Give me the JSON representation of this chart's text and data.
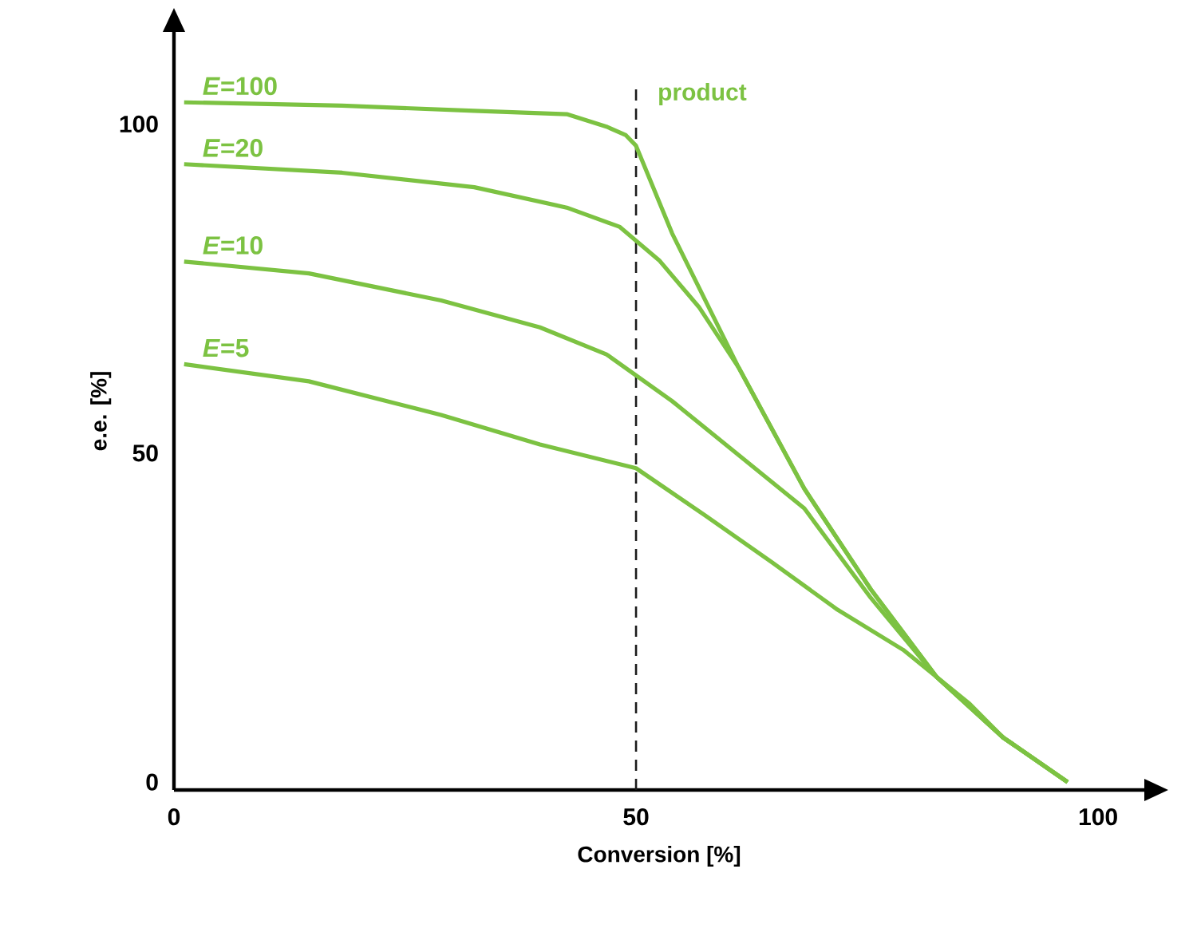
{
  "chart_data": {
    "type": "line",
    "xlabel": "Conversion [%]",
    "ylabel": "e.e. [%]",
    "xlim": [
      0,
      105
    ],
    "ylim": [
      -1.2,
      114
    ],
    "xticks": [
      0,
      50,
      100
    ],
    "yticks": [
      0,
      50,
      100
    ],
    "series": [
      {
        "name": "*E*=100",
        "color": "#7cc242",
        "x": [
          1.1,
          18.2,
          32.5,
          42.5,
          46.8,
          48.9,
          50,
          53.9,
          61.1,
          68.2,
          75.4,
          82.5,
          89.7,
          96.7
        ],
        "values": [
          103.3,
          102.8,
          102,
          101.5,
          99.6,
          98.3,
          96.7,
          83.4,
          63,
          44.6,
          29.3,
          16,
          6.8,
          0
        ]
      },
      {
        "name": "*E*=20",
        "color": "#7cc242",
        "x": [
          1.1,
          18.2,
          32.5,
          42.5,
          48.2,
          52.5,
          56.8,
          61.1,
          68.2,
          75.4,
          82.5,
          89.7,
          96.7
        ],
        "values": [
          93.9,
          92.6,
          90.4,
          87.3,
          84.4,
          79.3,
          72.2,
          63,
          44.6,
          29.3,
          16,
          6.8,
          0
        ]
      },
      {
        "name": "*E*=10",
        "color": "#7cc242",
        "x": [
          1.1,
          14.6,
          28.9,
          39.6,
          46.8,
          53.9,
          61.1,
          68.2,
          75.4,
          82.5,
          89.7,
          96.7
        ],
        "values": [
          79.1,
          77.3,
          73.2,
          69.1,
          65.0,
          57.9,
          49.7,
          41.6,
          28,
          16,
          6.8,
          0
        ]
      },
      {
        "name": "*E*=5",
        "color": "#7cc242",
        "x": [
          1.1,
          14.6,
          28.9,
          39.6,
          50,
          57.5,
          64.7,
          71.8,
          78.9,
          86.1,
          89.7,
          96.7
        ],
        "values": [
          63.5,
          60.9,
          55.8,
          51.3,
          47.7,
          40.5,
          33.4,
          26.2,
          20.1,
          11.9,
          6.8,
          0
        ]
      }
    ],
    "ref_lines": [
      {
        "axis": "x",
        "value": 50,
        "label": "product",
        "color": "#1a1a1a",
        "line_style": "dashed"
      }
    ]
  }
}
